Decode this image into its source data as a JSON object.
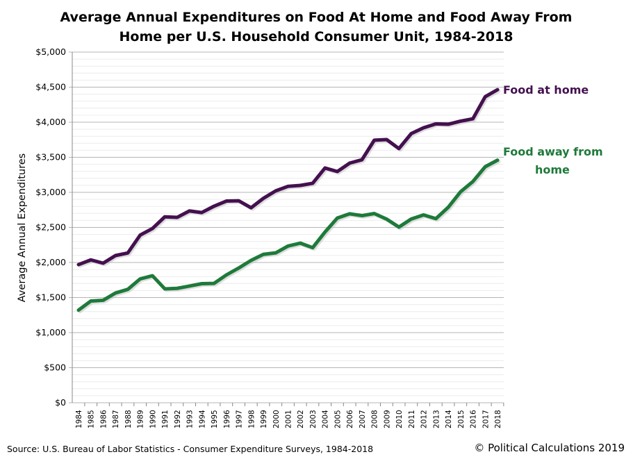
{
  "chart_data": {
    "type": "line",
    "title": "Average Annual Expenditures on Food At Home and Food Away From Home per U.S. Household Consumer Unit, 1984-2018",
    "title_lines": [
      "Average Annual Expenditures on Food At Home and Food Away From",
      "Home per U.S. Household Consumer Unit, 1984-2018"
    ],
    "xlabel": "",
    "ylabel": "Average Annual Expenditures",
    "ylim": [
      0,
      5000
    ],
    "yticks": [
      "$0",
      "$500",
      "$1,000",
      "$1,500",
      "$2,000",
      "$2,500",
      "$3,000",
      "$3,500",
      "$4,000",
      "$4,500",
      "$5,000"
    ],
    "x": [
      1984,
      1985,
      1986,
      1987,
      1988,
      1989,
      1990,
      1991,
      1992,
      1993,
      1994,
      1995,
      1996,
      1997,
      1998,
      1999,
      2000,
      2001,
      2002,
      2003,
      2004,
      2005,
      2006,
      2007,
      2008,
      2009,
      2010,
      2011,
      2012,
      2013,
      2014,
      2015,
      2016,
      2017,
      2018
    ],
    "grid": true,
    "series": [
      {
        "name": "Food at home",
        "color": "#44104f",
        "values": [
          1970,
          2037,
          1990,
          2099,
          2136,
          2390,
          2485,
          2651,
          2643,
          2735,
          2712,
          2803,
          2876,
          2880,
          2780,
          2915,
          3021,
          3086,
          3099,
          3129,
          3347,
          3297,
          3417,
          3465,
          3744,
          3753,
          3624,
          3838,
          3921,
          3977,
          3971,
          4015,
          4049,
          4363,
          4464
        ]
      },
      {
        "name": "Food away from home",
        "name_lines": [
          "Food away from",
          "home"
        ],
        "color": "#1e7a3a",
        "values": [
          1320,
          1451,
          1461,
          1565,
          1617,
          1766,
          1811,
          1624,
          1631,
          1664,
          1698,
          1702,
          1823,
          1921,
          2030,
          2116,
          2137,
          2235,
          2276,
          2211,
          2434,
          2634,
          2694,
          2668,
          2698,
          2619,
          2505,
          2620,
          2678,
          2625,
          2787,
          3008,
          3154,
          3365,
          3459
        ]
      }
    ]
  },
  "footer": {
    "source": "Source: U.S. Bureau of Labor Statistics - Consumer Expenditure Surveys, 1984-2018",
    "copyright": "© Political Calculations 2019"
  }
}
